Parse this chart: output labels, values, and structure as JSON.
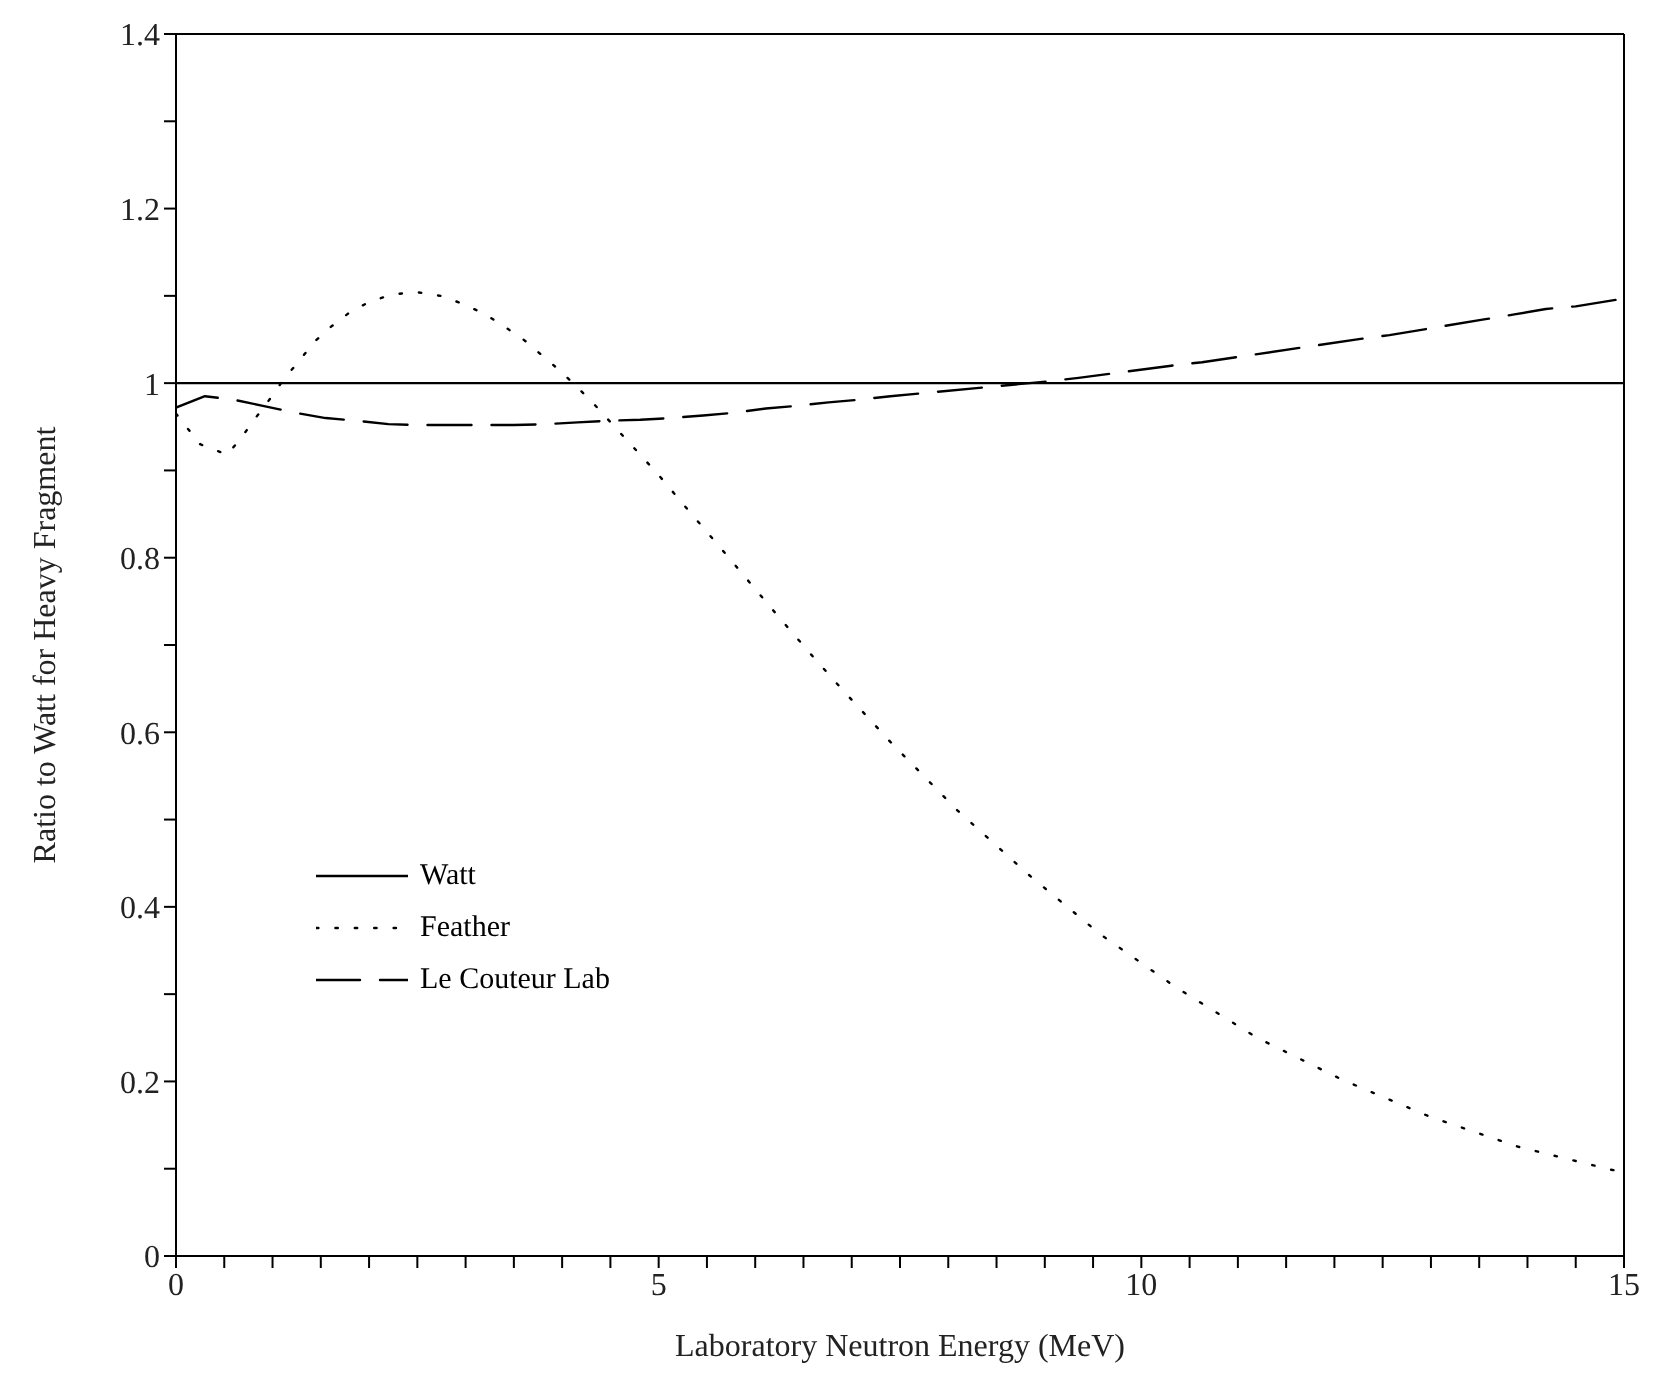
{
  "chart_data": {
    "type": "line",
    "xlabel": "Laboratory Neutron Energy (MeV)",
    "ylabel": "Ratio to Watt for Heavy Fragment",
    "xlim": [
      0,
      15
    ],
    "ylim": [
      0,
      1.4
    ],
    "xticks": [
      0,
      {
        "value": 0.5,
        "label": null
      },
      {
        "value": 1,
        "label": null
      },
      {
        "value": 1.5,
        "label": null
      },
      {
        "value": 2,
        "label": null
      },
      {
        "value": 2.5,
        "label": null
      },
      {
        "value": 3,
        "label": null
      },
      {
        "value": 3.5,
        "label": null
      },
      {
        "value": 4,
        "label": null
      },
      {
        "value": 4.5,
        "label": null
      },
      5,
      {
        "value": 5.5,
        "label": null
      },
      {
        "value": 6,
        "label": null
      },
      {
        "value": 6.5,
        "label": null
      },
      {
        "value": 7,
        "label": null
      },
      {
        "value": 7.5,
        "label": null
      },
      {
        "value": 8,
        "label": null
      },
      {
        "value": 8.5,
        "label": null
      },
      {
        "value": 9,
        "label": null
      },
      {
        "value": 9.5,
        "label": null
      },
      10,
      {
        "value": 10.5,
        "label": null
      },
      {
        "value": 11,
        "label": null
      },
      {
        "value": 11.5,
        "label": null
      },
      {
        "value": 12,
        "label": null
      },
      {
        "value": 12.5,
        "label": null
      },
      {
        "value": 13,
        "label": null
      },
      {
        "value": 13.5,
        "label": null
      },
      {
        "value": 14,
        "label": null
      },
      {
        "value": 14.5,
        "label": null
      },
      15
    ],
    "yticks": [
      0,
      {
        "value": 0.1,
        "label": null
      },
      0.2,
      {
        "value": 0.3,
        "label": null
      },
      0.4,
      {
        "value": 0.5,
        "label": null
      },
      0.6,
      {
        "value": 0.7,
        "label": null
      },
      0.8,
      {
        "value": 0.9,
        "label": null
      },
      1,
      {
        "value": 1.1,
        "label": null
      },
      1.2,
      {
        "value": 1.3,
        "label": null
      },
      1.4
    ],
    "grid": false,
    "legend": "bottom left",
    "marker": "none",
    "series": [
      {
        "name": "Watt",
        "color": "#000000",
        "line_style": "solid",
        "x": [
          0,
          15
        ],
        "values": [
          1,
          1
        ]
      },
      {
        "name": "Feather",
        "color": "#000000",
        "line_style": "dotted",
        "x": [
          0,
          0.25,
          0.53,
          0.68,
          0.83,
          0.98,
          1.12,
          1.28,
          1.43,
          1.61,
          1.81,
          2.02,
          2.26,
          2.51,
          2.74,
          2.97,
          3.2,
          3.4,
          3.61,
          3.79,
          3.98,
          4.16,
          4.33,
          4.66,
          4.99,
          5.31,
          5.62,
          5.94,
          6.26,
          6.58,
          6.91,
          7.4,
          8.09,
          8.82,
          9.57,
          10.37,
          11.2,
          12.08,
          12.98,
          13.91,
          14.86,
          15
        ],
        "values": [
          0.965,
          0.93,
          0.918,
          0.938,
          0.961,
          0.983,
          1.005,
          1.026,
          1.047,
          1.065,
          1.082,
          1.094,
          1.102,
          1.104,
          1.1,
          1.091,
          1.079,
          1.065,
          1.049,
          1.032,
          1.014,
          0.995,
          0.976,
          0.936,
          0.896,
          0.854,
          0.814,
          0.772,
          0.73,
          0.689,
          0.648,
          0.589,
          0.511,
          0.438,
          0.369,
          0.307,
          0.25,
          0.202,
          0.16,
          0.125,
          0.099,
          0.096
        ]
      },
      {
        "name": "Le Couteur Lab",
        "color": "#000000",
        "line_style": "dashed",
        "x": [
          0,
          0.3,
          0.6,
          0.9,
          1.24,
          1.55,
          1.87,
          2.2,
          2.53,
          2.85,
          3.18,
          3.5,
          3.83,
          4.16,
          4.48,
          4.81,
          5.13,
          5.46,
          5.78,
          6.11,
          6.43,
          6.76,
          7.07,
          7.4,
          9.03,
          9.35,
          10.31,
          10.63,
          12.29,
          12.57,
          13.55,
          13.88,
          14.19,
          14.5,
          15
        ],
        "values": [
          0.972,
          0.985,
          0.981,
          0.974,
          0.966,
          0.96,
          0.957,
          0.953,
          0.952,
          0.952,
          0.952,
          0.952,
          0.953,
          0.955,
          0.957,
          0.958,
          0.96,
          0.963,
          0.966,
          0.971,
          0.974,
          0.978,
          0.981,
          0.985,
          1.002,
          1.006,
          1.02,
          1.024,
          1.051,
          1.055,
          1.073,
          1.079,
          1.085,
          1.088,
          1.097
        ]
      }
    ]
  }
}
